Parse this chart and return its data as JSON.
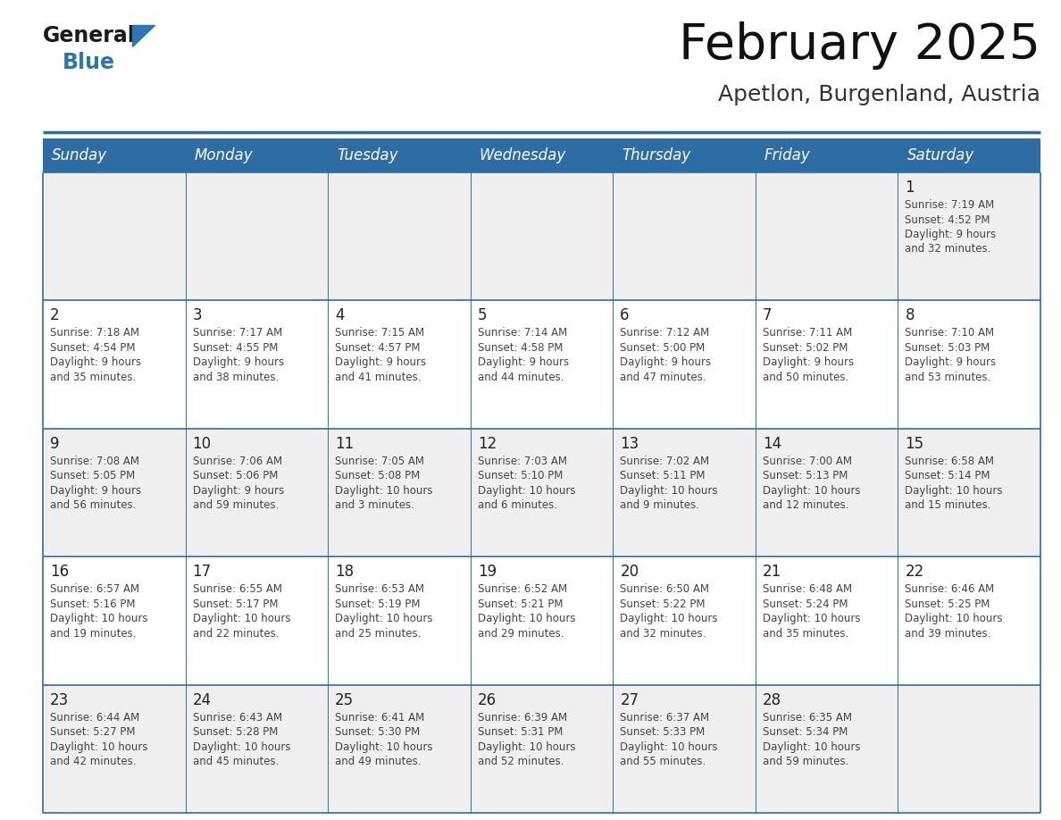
{
  "title": "February 2025",
  "subtitle": "Apetlon, Burgenland, Austria",
  "header_bg": "#2E6DA4",
  "header_text": "#FFFFFF",
  "cell_bg_odd": "#EFEFEF",
  "cell_bg_even": "#FFFFFF",
  "border_color": "#2E6DA4",
  "text_color": "#444444",
  "day_number_color": "#222222",
  "days_of_week": [
    "Sunday",
    "Monday",
    "Tuesday",
    "Wednesday",
    "Thursday",
    "Friday",
    "Saturday"
  ],
  "logo_general_color": "#1a1a1a",
  "logo_blue_color": "#2E75B6",
  "weeks": [
    [
      null,
      null,
      null,
      null,
      null,
      null,
      {
        "day": 1,
        "sunrise": "7:19 AM",
        "sunset": "4:52 PM",
        "daylight": "9 hours",
        "daylight2": "and 32 minutes."
      }
    ],
    [
      {
        "day": 2,
        "sunrise": "7:18 AM",
        "sunset": "4:54 PM",
        "daylight": "9 hours",
        "daylight2": "and 35 minutes."
      },
      {
        "day": 3,
        "sunrise": "7:17 AM",
        "sunset": "4:55 PM",
        "daylight": "9 hours",
        "daylight2": "and 38 minutes."
      },
      {
        "day": 4,
        "sunrise": "7:15 AM",
        "sunset": "4:57 PM",
        "daylight": "9 hours",
        "daylight2": "and 41 minutes."
      },
      {
        "day": 5,
        "sunrise": "7:14 AM",
        "sunset": "4:58 PM",
        "daylight": "9 hours",
        "daylight2": "and 44 minutes."
      },
      {
        "day": 6,
        "sunrise": "7:12 AM",
        "sunset": "5:00 PM",
        "daylight": "9 hours",
        "daylight2": "and 47 minutes."
      },
      {
        "day": 7,
        "sunrise": "7:11 AM",
        "sunset": "5:02 PM",
        "daylight": "9 hours",
        "daylight2": "and 50 minutes."
      },
      {
        "day": 8,
        "sunrise": "7:10 AM",
        "sunset": "5:03 PM",
        "daylight": "9 hours",
        "daylight2": "and 53 minutes."
      }
    ],
    [
      {
        "day": 9,
        "sunrise": "7:08 AM",
        "sunset": "5:05 PM",
        "daylight": "9 hours",
        "daylight2": "and 56 minutes."
      },
      {
        "day": 10,
        "sunrise": "7:06 AM",
        "sunset": "5:06 PM",
        "daylight": "9 hours",
        "daylight2": "and 59 minutes."
      },
      {
        "day": 11,
        "sunrise": "7:05 AM",
        "sunset": "5:08 PM",
        "daylight": "10 hours",
        "daylight2": "and 3 minutes."
      },
      {
        "day": 12,
        "sunrise": "7:03 AM",
        "sunset": "5:10 PM",
        "daylight": "10 hours",
        "daylight2": "and 6 minutes."
      },
      {
        "day": 13,
        "sunrise": "7:02 AM",
        "sunset": "5:11 PM",
        "daylight": "10 hours",
        "daylight2": "and 9 minutes."
      },
      {
        "day": 14,
        "sunrise": "7:00 AM",
        "sunset": "5:13 PM",
        "daylight": "10 hours",
        "daylight2": "and 12 minutes."
      },
      {
        "day": 15,
        "sunrise": "6:58 AM",
        "sunset": "5:14 PM",
        "daylight": "10 hours",
        "daylight2": "and 15 minutes."
      }
    ],
    [
      {
        "day": 16,
        "sunrise": "6:57 AM",
        "sunset": "5:16 PM",
        "daylight": "10 hours",
        "daylight2": "and 19 minutes."
      },
      {
        "day": 17,
        "sunrise": "6:55 AM",
        "sunset": "5:17 PM",
        "daylight": "10 hours",
        "daylight2": "and 22 minutes."
      },
      {
        "day": 18,
        "sunrise": "6:53 AM",
        "sunset": "5:19 PM",
        "daylight": "10 hours",
        "daylight2": "and 25 minutes."
      },
      {
        "day": 19,
        "sunrise": "6:52 AM",
        "sunset": "5:21 PM",
        "daylight": "10 hours",
        "daylight2": "and 29 minutes."
      },
      {
        "day": 20,
        "sunrise": "6:50 AM",
        "sunset": "5:22 PM",
        "daylight": "10 hours",
        "daylight2": "and 32 minutes."
      },
      {
        "day": 21,
        "sunrise": "6:48 AM",
        "sunset": "5:24 PM",
        "daylight": "10 hours",
        "daylight2": "and 35 minutes."
      },
      {
        "day": 22,
        "sunrise": "6:46 AM",
        "sunset": "5:25 PM",
        "daylight": "10 hours",
        "daylight2": "and 39 minutes."
      }
    ],
    [
      {
        "day": 23,
        "sunrise": "6:44 AM",
        "sunset": "5:27 PM",
        "daylight": "10 hours",
        "daylight2": "and 42 minutes."
      },
      {
        "day": 24,
        "sunrise": "6:43 AM",
        "sunset": "5:28 PM",
        "daylight": "10 hours",
        "daylight2": "and 45 minutes."
      },
      {
        "day": 25,
        "sunrise": "6:41 AM",
        "sunset": "5:30 PM",
        "daylight": "10 hours",
        "daylight2": "and 49 minutes."
      },
      {
        "day": 26,
        "sunrise": "6:39 AM",
        "sunset": "5:31 PM",
        "daylight": "10 hours",
        "daylight2": "and 52 minutes."
      },
      {
        "day": 27,
        "sunrise": "6:37 AM",
        "sunset": "5:33 PM",
        "daylight": "10 hours",
        "daylight2": "and 55 minutes."
      },
      {
        "day": 28,
        "sunrise": "6:35 AM",
        "sunset": "5:34 PM",
        "daylight": "10 hours",
        "daylight2": "and 59 minutes."
      },
      null
    ]
  ]
}
